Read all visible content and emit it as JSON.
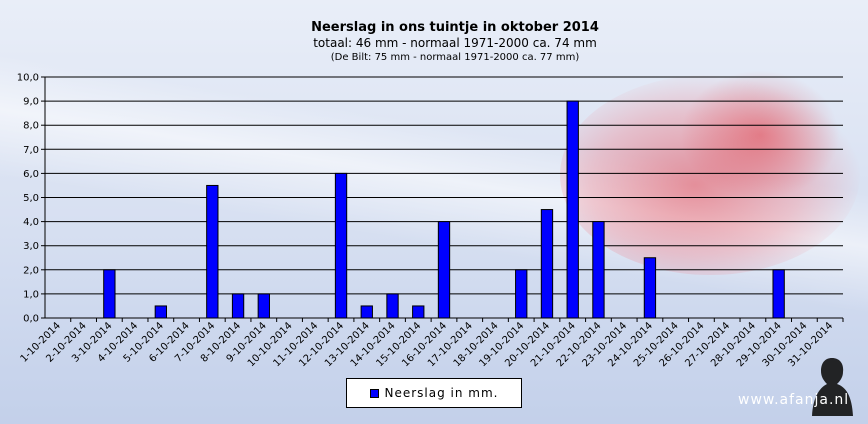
{
  "chart_data": {
    "type": "bar",
    "title": "Neerslag  in ons tuintje in oktober 2014",
    "subtitle": "totaal: 46 mm  - normaal  1971-2000  ca. 74 mm",
    "subsubtitle": "(De Bilt: 75 mm - normaal 1971-2000 ca. 77 mm)",
    "xlabel": "",
    "ylabel": "",
    "ylim": [
      0,
      10
    ],
    "yticks": [
      "0,0",
      "1,0",
      "2,0",
      "3,0",
      "4,0",
      "5,0",
      "6,0",
      "7,0",
      "8,0",
      "9,0",
      "10,0"
    ],
    "grid": true,
    "legend_position": "bottom",
    "categories": [
      "1-10-2014",
      "2-10-2014",
      "3-10-2014",
      "4-10-2014",
      "5-10-2014",
      "6-10-2014",
      "7-10-2014",
      "8-10-2014",
      "9-10-2014",
      "10-10-2014",
      "11-10-2014",
      "12-10-2014",
      "13-10-2014",
      "14-10-2014",
      "15-10-2014",
      "16-10-2014",
      "17-10-2014",
      "18-10-2014",
      "19-10-2014",
      "20-10-2014",
      "21-10-2014",
      "22-10-2014",
      "23-10-2014",
      "24-10-2014",
      "25-10-2014",
      "26-10-2014",
      "27-10-2014",
      "28-10-2014",
      "29-10-2014",
      "30-10-2014",
      "31-10-2014"
    ],
    "series": [
      {
        "name": "Neerslag in mm.",
        "color": "#0000ff",
        "values": [
          0,
          0,
          2,
          0,
          0.5,
          0,
          5.5,
          1,
          1,
          0,
          0,
          6,
          0.5,
          1,
          0.5,
          4,
          0,
          0,
          2,
          4.5,
          9,
          4,
          0,
          2.5,
          0,
          0,
          0,
          0,
          2,
          0,
          0
        ]
      }
    ]
  },
  "legend": {
    "label": "Neerslag in mm."
  },
  "watermark": "www.afanja.nl"
}
